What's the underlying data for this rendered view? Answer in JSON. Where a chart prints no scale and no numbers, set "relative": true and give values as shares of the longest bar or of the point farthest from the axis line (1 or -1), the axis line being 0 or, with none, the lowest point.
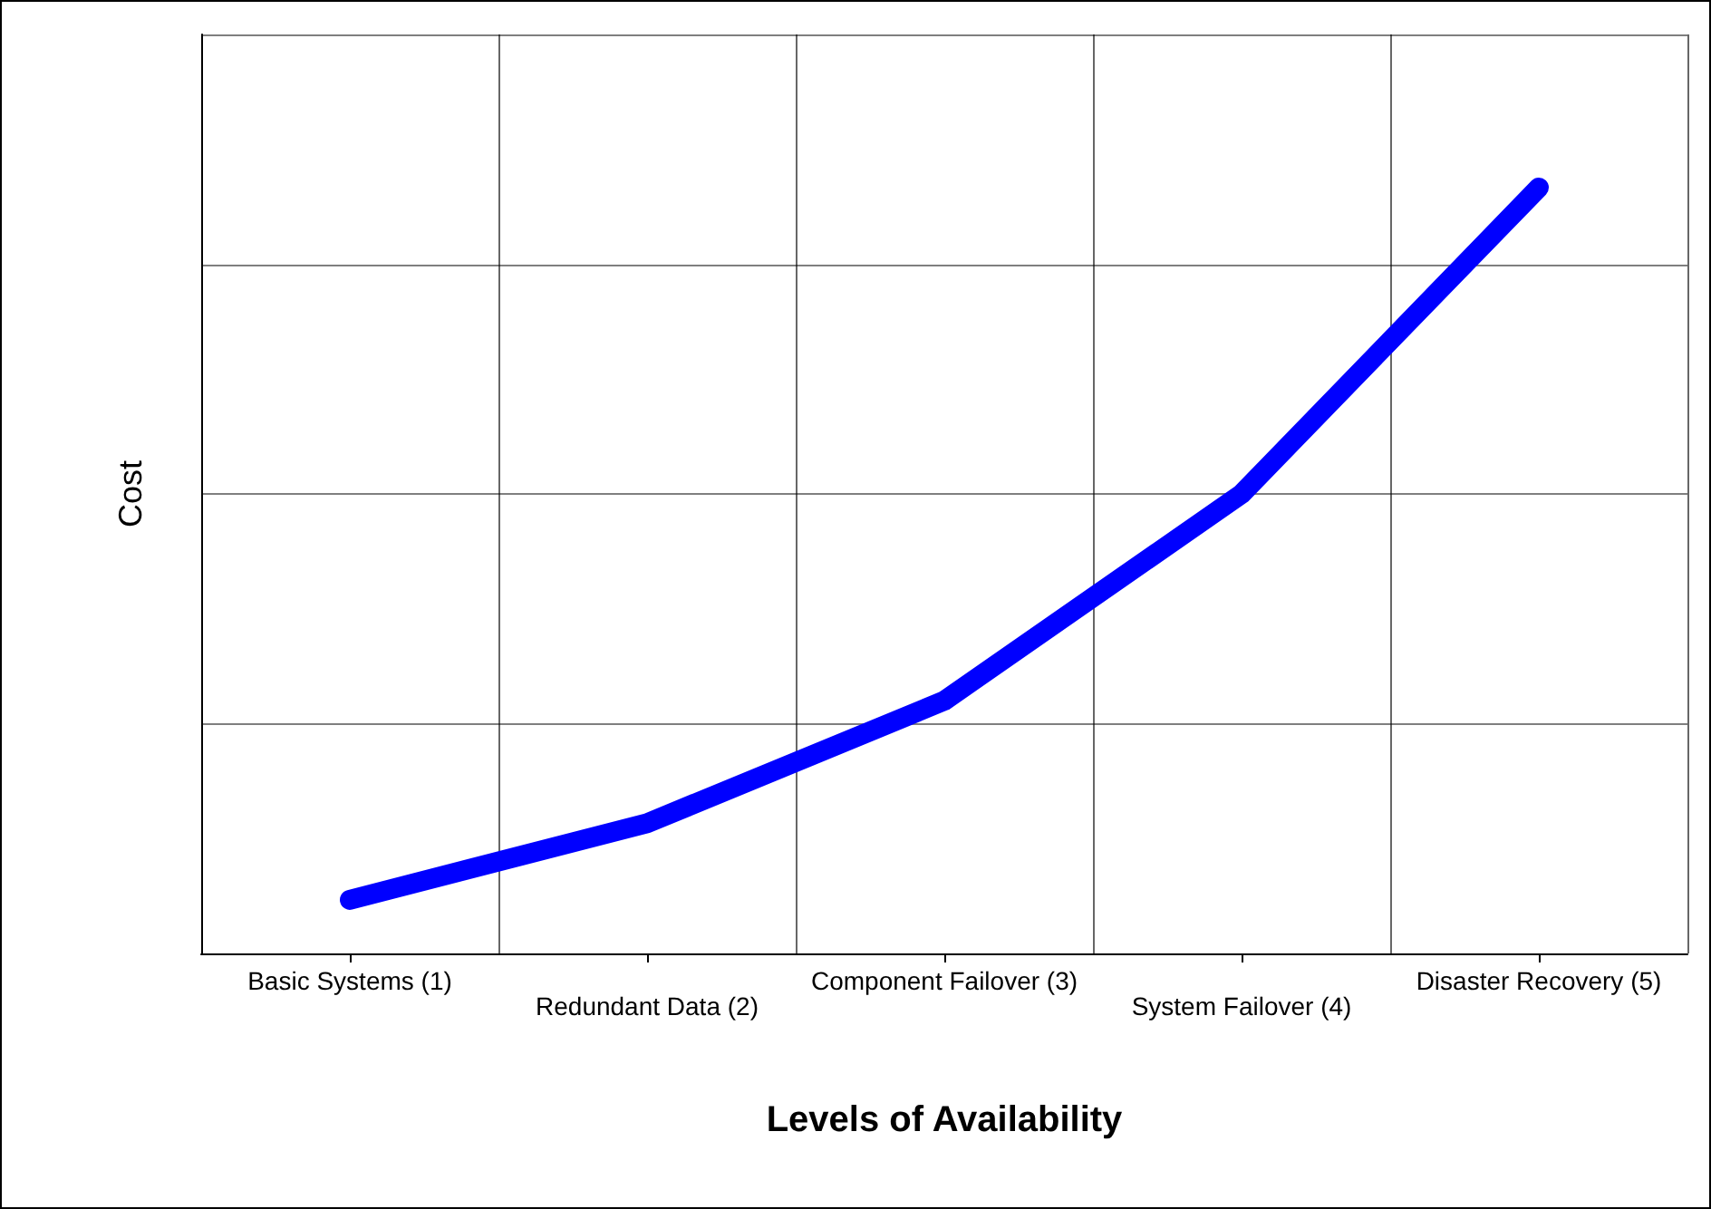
{
  "chart_data": {
    "type": "line",
    "relative": true,
    "xlabel": "Levels of Availability",
    "ylabel": "Cost",
    "categories": [
      "Basic Systems (1)",
      "Redundant Data (2)",
      "Component Failover (3)",
      "System Failover (4)",
      "Disaster Recovery (5)"
    ],
    "series": [
      {
        "color": "#0000ff",
        "values": [
          0.07,
          0.17,
          0.33,
          0.6,
          1
        ]
      }
    ],
    "grid": true,
    "line_style": "solid"
  }
}
